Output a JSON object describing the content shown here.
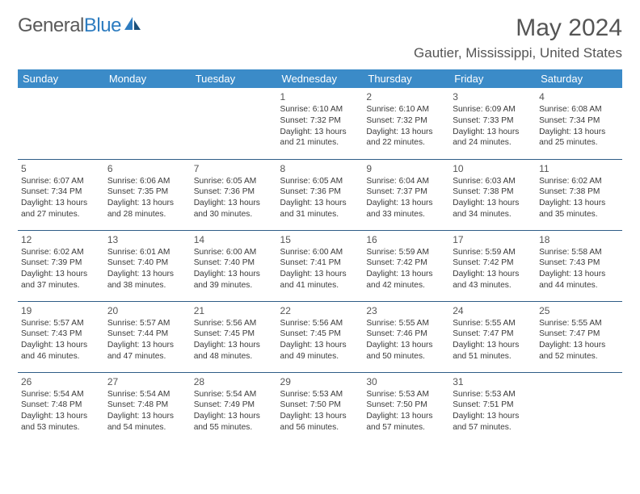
{
  "logo": {
    "text_gray": "General",
    "text_blue": "Blue"
  },
  "title": "May 2024",
  "location": "Gautier, Mississippi, United States",
  "colors": {
    "header_bg": "#3b8bc8",
    "header_text": "#ffffff",
    "row_border": "#2f5d87",
    "body_text": "#3a3a3a",
    "title_text": "#555555"
  },
  "day_headers": [
    "Sunday",
    "Monday",
    "Tuesday",
    "Wednesday",
    "Thursday",
    "Friday",
    "Saturday"
  ],
  "weeks": [
    [
      {
        "n": "",
        "sr": "",
        "ss": "",
        "dl": ""
      },
      {
        "n": "",
        "sr": "",
        "ss": "",
        "dl": ""
      },
      {
        "n": "",
        "sr": "",
        "ss": "",
        "dl": ""
      },
      {
        "n": "1",
        "sr": "Sunrise: 6:10 AM",
        "ss": "Sunset: 7:32 PM",
        "dl": "Daylight: 13 hours and 21 minutes."
      },
      {
        "n": "2",
        "sr": "Sunrise: 6:10 AM",
        "ss": "Sunset: 7:32 PM",
        "dl": "Daylight: 13 hours and 22 minutes."
      },
      {
        "n": "3",
        "sr": "Sunrise: 6:09 AM",
        "ss": "Sunset: 7:33 PM",
        "dl": "Daylight: 13 hours and 24 minutes."
      },
      {
        "n": "4",
        "sr": "Sunrise: 6:08 AM",
        "ss": "Sunset: 7:34 PM",
        "dl": "Daylight: 13 hours and 25 minutes."
      }
    ],
    [
      {
        "n": "5",
        "sr": "Sunrise: 6:07 AM",
        "ss": "Sunset: 7:34 PM",
        "dl": "Daylight: 13 hours and 27 minutes."
      },
      {
        "n": "6",
        "sr": "Sunrise: 6:06 AM",
        "ss": "Sunset: 7:35 PM",
        "dl": "Daylight: 13 hours and 28 minutes."
      },
      {
        "n": "7",
        "sr": "Sunrise: 6:05 AM",
        "ss": "Sunset: 7:36 PM",
        "dl": "Daylight: 13 hours and 30 minutes."
      },
      {
        "n": "8",
        "sr": "Sunrise: 6:05 AM",
        "ss": "Sunset: 7:36 PM",
        "dl": "Daylight: 13 hours and 31 minutes."
      },
      {
        "n": "9",
        "sr": "Sunrise: 6:04 AM",
        "ss": "Sunset: 7:37 PM",
        "dl": "Daylight: 13 hours and 33 minutes."
      },
      {
        "n": "10",
        "sr": "Sunrise: 6:03 AM",
        "ss": "Sunset: 7:38 PM",
        "dl": "Daylight: 13 hours and 34 minutes."
      },
      {
        "n": "11",
        "sr": "Sunrise: 6:02 AM",
        "ss": "Sunset: 7:38 PM",
        "dl": "Daylight: 13 hours and 35 minutes."
      }
    ],
    [
      {
        "n": "12",
        "sr": "Sunrise: 6:02 AM",
        "ss": "Sunset: 7:39 PM",
        "dl": "Daylight: 13 hours and 37 minutes."
      },
      {
        "n": "13",
        "sr": "Sunrise: 6:01 AM",
        "ss": "Sunset: 7:40 PM",
        "dl": "Daylight: 13 hours and 38 minutes."
      },
      {
        "n": "14",
        "sr": "Sunrise: 6:00 AM",
        "ss": "Sunset: 7:40 PM",
        "dl": "Daylight: 13 hours and 39 minutes."
      },
      {
        "n": "15",
        "sr": "Sunrise: 6:00 AM",
        "ss": "Sunset: 7:41 PM",
        "dl": "Daylight: 13 hours and 41 minutes."
      },
      {
        "n": "16",
        "sr": "Sunrise: 5:59 AM",
        "ss": "Sunset: 7:42 PM",
        "dl": "Daylight: 13 hours and 42 minutes."
      },
      {
        "n": "17",
        "sr": "Sunrise: 5:59 AM",
        "ss": "Sunset: 7:42 PM",
        "dl": "Daylight: 13 hours and 43 minutes."
      },
      {
        "n": "18",
        "sr": "Sunrise: 5:58 AM",
        "ss": "Sunset: 7:43 PM",
        "dl": "Daylight: 13 hours and 44 minutes."
      }
    ],
    [
      {
        "n": "19",
        "sr": "Sunrise: 5:57 AM",
        "ss": "Sunset: 7:43 PM",
        "dl": "Daylight: 13 hours and 46 minutes."
      },
      {
        "n": "20",
        "sr": "Sunrise: 5:57 AM",
        "ss": "Sunset: 7:44 PM",
        "dl": "Daylight: 13 hours and 47 minutes."
      },
      {
        "n": "21",
        "sr": "Sunrise: 5:56 AM",
        "ss": "Sunset: 7:45 PM",
        "dl": "Daylight: 13 hours and 48 minutes."
      },
      {
        "n": "22",
        "sr": "Sunrise: 5:56 AM",
        "ss": "Sunset: 7:45 PM",
        "dl": "Daylight: 13 hours and 49 minutes."
      },
      {
        "n": "23",
        "sr": "Sunrise: 5:55 AM",
        "ss": "Sunset: 7:46 PM",
        "dl": "Daylight: 13 hours and 50 minutes."
      },
      {
        "n": "24",
        "sr": "Sunrise: 5:55 AM",
        "ss": "Sunset: 7:47 PM",
        "dl": "Daylight: 13 hours and 51 minutes."
      },
      {
        "n": "25",
        "sr": "Sunrise: 5:55 AM",
        "ss": "Sunset: 7:47 PM",
        "dl": "Daylight: 13 hours and 52 minutes."
      }
    ],
    [
      {
        "n": "26",
        "sr": "Sunrise: 5:54 AM",
        "ss": "Sunset: 7:48 PM",
        "dl": "Daylight: 13 hours and 53 minutes."
      },
      {
        "n": "27",
        "sr": "Sunrise: 5:54 AM",
        "ss": "Sunset: 7:48 PM",
        "dl": "Daylight: 13 hours and 54 minutes."
      },
      {
        "n": "28",
        "sr": "Sunrise: 5:54 AM",
        "ss": "Sunset: 7:49 PM",
        "dl": "Daylight: 13 hours and 55 minutes."
      },
      {
        "n": "29",
        "sr": "Sunrise: 5:53 AM",
        "ss": "Sunset: 7:50 PM",
        "dl": "Daylight: 13 hours and 56 minutes."
      },
      {
        "n": "30",
        "sr": "Sunrise: 5:53 AM",
        "ss": "Sunset: 7:50 PM",
        "dl": "Daylight: 13 hours and 57 minutes."
      },
      {
        "n": "31",
        "sr": "Sunrise: 5:53 AM",
        "ss": "Sunset: 7:51 PM",
        "dl": "Daylight: 13 hours and 57 minutes."
      },
      {
        "n": "",
        "sr": "",
        "ss": "",
        "dl": ""
      }
    ]
  ]
}
